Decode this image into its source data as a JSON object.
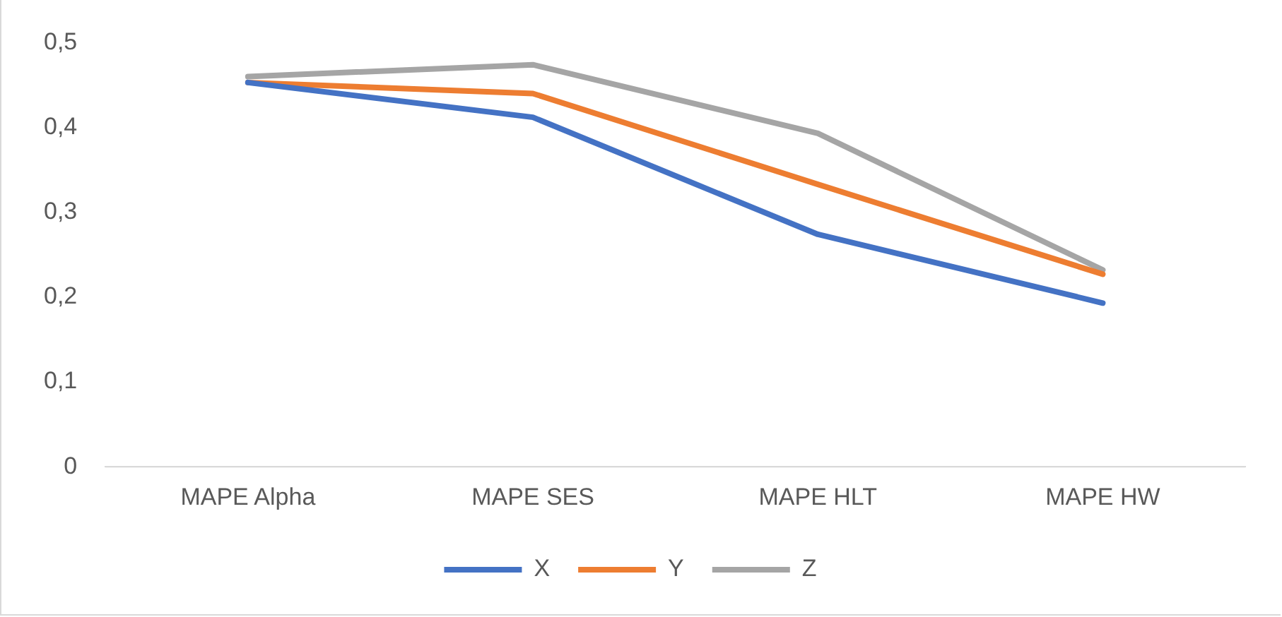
{
  "chart_data": {
    "type": "line",
    "categories": [
      "MAPE Alpha",
      "MAPE SES",
      "MAPE HLT",
      "MAPE HW"
    ],
    "series": [
      {
        "name": "X",
        "color": "#4472c4",
        "values": [
          0.453,
          0.412,
          0.274,
          0.193
        ]
      },
      {
        "name": "Y",
        "color": "#ed7d31",
        "values": [
          0.453,
          0.44,
          0.333,
          0.227
        ]
      },
      {
        "name": "Z",
        "color": "#a5a5a5",
        "values": [
          0.46,
          0.474,
          0.393,
          0.232
        ]
      }
    ],
    "ylim": [
      0,
      0.5
    ],
    "yticks": [
      {
        "value": 0,
        "label": "0"
      },
      {
        "value": 0.1,
        "label": "0,1"
      },
      {
        "value": 0.2,
        "label": "0,2"
      },
      {
        "value": 0.3,
        "label": "0,3"
      },
      {
        "value": 0.4,
        "label": "0,4"
      },
      {
        "value": 0.5,
        "label": "0,5"
      }
    ],
    "grid": false,
    "legend": "bottom",
    "marker": "none",
    "line_style": "solid"
  }
}
